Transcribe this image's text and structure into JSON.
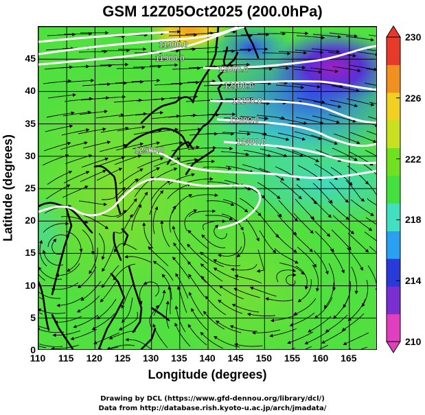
{
  "title": "GSM 12Z05Oct2025 (200.0hPa)",
  "axes": {
    "xlabel": "Longitude (degrees)",
    "ylabel": "Latitude  (degrees)",
    "xticks": [
      "110",
      "115",
      "120",
      "125",
      "130",
      "135",
      "140",
      "145",
      "150",
      "155",
      "160",
      "165"
    ],
    "yticks": [
      "0",
      "5",
      "10",
      "15",
      "20",
      "25",
      "30",
      "35",
      "40",
      "45"
    ],
    "xlim": [
      110,
      170
    ],
    "ylim": [
      0,
      50
    ]
  },
  "colorbar": {
    "ticks": [
      "210",
      "214",
      "218",
      "222",
      "226",
      "230"
    ],
    "range": [
      210,
      230
    ],
    "colors": [
      "#e040c0",
      "#7a2fd0",
      "#2a3ad8",
      "#2aa0f0",
      "#40e0c0",
      "#44e040",
      "#70e020",
      "#c8e020",
      "#f0d020",
      "#f09020",
      "#e83a2a"
    ]
  },
  "contours": {
    "color": "#ffffff",
    "labels": [
      "11900.0",
      "12000.0",
      "12100.0",
      "12200.0",
      "12300.0",
      "12400.0",
      "12500.0",
      "11900.0"
    ]
  },
  "credits": {
    "line1": "Drawing by DCL (https://www.gfd-dennou.org/library/dcl/)",
    "line2": "Data from http://database.rish.kyoto-u.ac.jp/arch/jmadata/"
  }
}
